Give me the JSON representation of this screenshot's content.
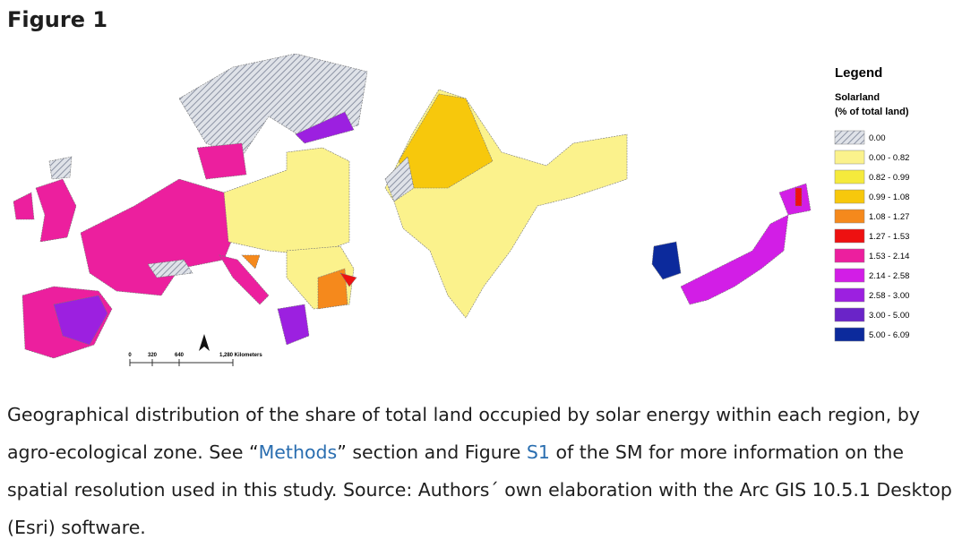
{
  "figure": {
    "label": "Figure 1",
    "legend": {
      "title": "Legend",
      "subtitle": "Solarland",
      "unit": "(% of total land)",
      "items": [
        {
          "label": "0.00",
          "color": "#c3c8d4",
          "style": "hatched"
        },
        {
          "label": "0.00 - 0.82",
          "color": "#fbf28c"
        },
        {
          "label": "0.82 - 0.99",
          "color": "#f5ea3c"
        },
        {
          "label": "0.99 - 1.08",
          "color": "#f7c80c"
        },
        {
          "label": "1.08 - 1.27",
          "color": "#f5891c"
        },
        {
          "label": "1.27 - 1.53",
          "color": "#ee1111"
        },
        {
          "label": "1.53 - 2.14",
          "color": "#ec1f9e"
        },
        {
          "label": "2.14 - 2.58",
          "color": "#d21ee6"
        },
        {
          "label": "2.58 - 3.00",
          "color": "#9c20e0"
        },
        {
          "label": "3.00 - 5.00",
          "color": "#6a24c8"
        },
        {
          "label": "5.00 - 6.09",
          "color": "#0c2a9c"
        }
      ]
    },
    "scale_bar": [
      "0",
      "320",
      "640",
      "1,280 Kilometers"
    ],
    "caption": [
      "Geographical distribution of the share of total land occupied by solar energy within each region, by agro-ecological zone. See “",
      "Methods",
      "” section and Figure ",
      "S1",
      " of the SM for more information on the spatial resolution used in this study. Source: Authors´ own elaboration with the Arc GIS 10.5.1 Desktop (Esri) software."
    ]
  }
}
